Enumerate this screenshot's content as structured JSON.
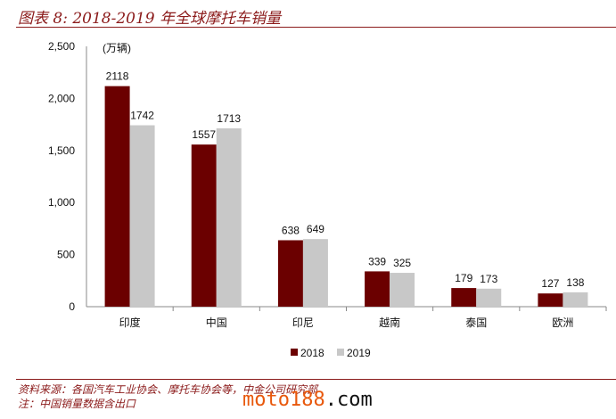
{
  "chart_data": {
    "type": "bar",
    "title": "图表 8: 2018-2019 年全球摩托车销量",
    "ylabel": "(万辆)",
    "categories": [
      "印度",
      "中国",
      "印尼",
      "越南",
      "泰国",
      "欧洲"
    ],
    "series": [
      {
        "name": "2018",
        "values": [
          2118,
          1557,
          638,
          339,
          179,
          127
        ],
        "color": "#6b0000"
      },
      {
        "name": "2019",
        "values": [
          1742,
          1713,
          649,
          325,
          173,
          138
        ],
        "color": "#c8c8c8"
      }
    ],
    "ylim": [
      0,
      2500
    ],
    "yticks": [
      0,
      500,
      1000,
      1500,
      2000,
      2500
    ],
    "ytick_labels": [
      "0",
      "500",
      "1,000",
      "1,500",
      "2,000",
      "2,500"
    ],
    "grid": false,
    "legend": "bottom"
  },
  "footer": {
    "source": "资料来源：各国汽车工业协会、摩托车协会等，中金公司研究部",
    "note": "注：中国销量数据含出口"
  },
  "watermark": {
    "main": "moto188",
    "suffix": ".com"
  }
}
